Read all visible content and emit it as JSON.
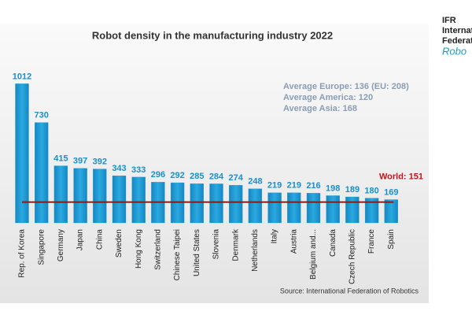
{
  "chart_data": {
    "type": "bar",
    "title": "Robot density in the manufacturing industry 2022",
    "categories": [
      "Rep. of Korea",
      "Singapore",
      "Germany",
      "Japan",
      "China",
      "Sweden",
      "Hong Kong",
      "Switzerland",
      "Chinese Taipei",
      "United States",
      "Slovenia",
      "Denmark",
      "Netherlands",
      "Italy",
      "Austria",
      "Belgium and...",
      "Canada",
      "Czech Republic",
      "France",
      "Spain"
    ],
    "values": [
      1012,
      730,
      415,
      397,
      392,
      343,
      333,
      296,
      292,
      285,
      284,
      274,
      248,
      219,
      219,
      216,
      198,
      189,
      180,
      169
    ],
    "color": "#1a9ad6",
    "ylim": [
      0,
      1100
    ],
    "world": {
      "label": "World: 151",
      "value": 151,
      "color": "#8b1a1a"
    },
    "notes": [
      "Average Europe: 136  (EU: 208)",
      "Average America: 120",
      "Average Asia: 168"
    ],
    "source": "Source: International Federation of Robotics"
  },
  "logo": {
    "lines": [
      "IFR",
      "Internati",
      "Federati"
    ],
    "script": "Robo"
  }
}
